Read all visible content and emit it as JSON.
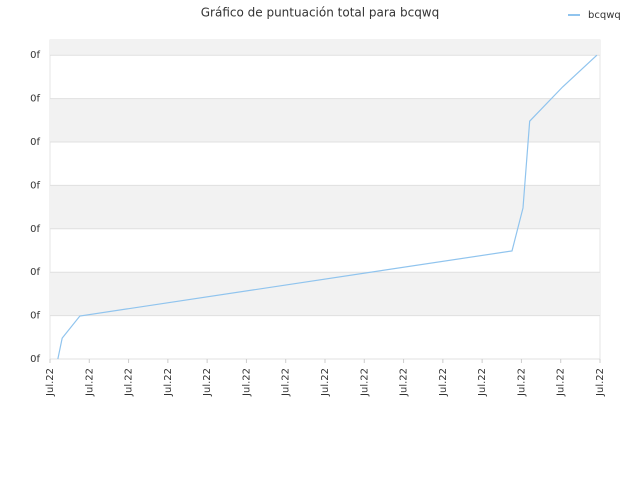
{
  "chart_data": {
    "type": "line",
    "title": "Gráfico de puntuación total para bcqwq",
    "x": [
      0.2,
      0.31,
      0.76,
      11.76,
      12.04,
      12.21,
      13.05,
      13.92
    ],
    "series": [
      {
        "name": "bcqwq",
        "color": "#90c4ee",
        "values": [
          0,
          0.48,
          0.99,
          2.49,
          3.48,
          5.48,
          6.27,
          7.0
        ]
      }
    ],
    "xlim": [
      0,
      14
    ],
    "xticks": [
      {
        "value": 0,
        "label": "Jul.22"
      },
      {
        "value": 1,
        "label": "Jul.22"
      },
      {
        "value": 2,
        "label": "Jul.22"
      },
      {
        "value": 3,
        "label": "Jul.22"
      },
      {
        "value": 4,
        "label": "Jul.22"
      },
      {
        "value": 5,
        "label": "Jul.22"
      },
      {
        "value": 6,
        "label": "Jul.22"
      },
      {
        "value": 7,
        "label": "Jul.22"
      },
      {
        "value": 8,
        "label": "Jul.22"
      },
      {
        "value": 9,
        "label": "Jul.22"
      },
      {
        "value": 10,
        "label": "Jul.22"
      },
      {
        "value": 11,
        "label": "Jul.22"
      },
      {
        "value": 12,
        "label": "Jul.22"
      },
      {
        "value": 13,
        "label": "Jul.22"
      },
      {
        "value": 14,
        "label": "Jul.22"
      }
    ],
    "ylim": [
      0,
      7.35
    ],
    "yticks": [
      {
        "value": 0,
        "label": "0f"
      },
      {
        "value": 1,
        "label": "0f"
      },
      {
        "value": 2,
        "label": "0f"
      },
      {
        "value": 3,
        "label": "0f"
      },
      {
        "value": 4,
        "label": "0f"
      },
      {
        "value": 5,
        "label": "0f"
      },
      {
        "value": 6,
        "label": "0f"
      },
      {
        "value": 7,
        "label": "0f"
      }
    ],
    "grid": true,
    "legend": "top-right"
  }
}
